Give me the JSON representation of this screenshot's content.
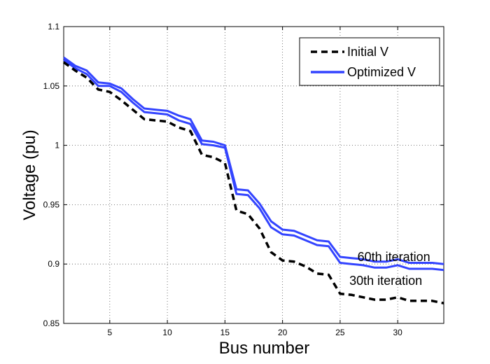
{
  "chart_data": {
    "type": "line",
    "title": "",
    "xlabel": "Bus number",
    "ylabel": "Voltage (pu)",
    "xlim": [
      1,
      34
    ],
    "ylim": [
      0.85,
      1.1
    ],
    "xticks": [
      5,
      10,
      15,
      20,
      25,
      30
    ],
    "xtick_labels": [
      "5",
      "10",
      "15",
      "20",
      "25",
      "30"
    ],
    "yticks": [
      0.85,
      0.9,
      0.95,
      1.0,
      1.05,
      1.1
    ],
    "ytick_labels": [
      "0.85",
      "0.9",
      "0.95",
      "1",
      "1.05",
      "1.1"
    ],
    "grid": true,
    "legend_position": "top-right",
    "x": [
      1,
      2,
      3,
      4,
      5,
      6,
      7,
      8,
      9,
      10,
      11,
      12,
      13,
      14,
      15,
      16,
      17,
      18,
      19,
      20,
      21,
      22,
      23,
      24,
      25,
      26,
      27,
      28,
      29,
      30,
      31,
      32,
      33,
      34
    ],
    "series": [
      {
        "name": "Initial V",
        "style": "dashed",
        "color": "#000000",
        "values": [
          1.07,
          1.063,
          1.057,
          1.047,
          1.045,
          1.038,
          1.03,
          1.022,
          1.021,
          1.02,
          1.015,
          1.012,
          0.992,
          0.99,
          0.985,
          0.945,
          0.942,
          0.93,
          0.91,
          0.903,
          0.902,
          0.898,
          0.892,
          0.891,
          0.875,
          0.874,
          0.872,
          0.87,
          0.87,
          0.872,
          0.869,
          0.869,
          0.869,
          0.867
        ]
      },
      {
        "name": "Optimized V",
        "style": "solid",
        "color": "#3344ff",
        "values": [
          1.072,
          1.065,
          1.06,
          1.05,
          1.05,
          1.045,
          1.036,
          1.028,
          1.027,
          1.026,
          1.021,
          1.018,
          1.001,
          1.0,
          0.998,
          0.959,
          0.958,
          0.947,
          0.931,
          0.925,
          0.924,
          0.92,
          0.916,
          0.915,
          0.901,
          0.9,
          0.899,
          0.897,
          0.897,
          0.899,
          0.896,
          0.896,
          0.896,
          0.895
        ]
      },
      {
        "name": "Optimized V",
        "style": "solid",
        "color": "#3344ff",
        "values": [
          1.074,
          1.067,
          1.063,
          1.053,
          1.052,
          1.048,
          1.039,
          1.031,
          1.03,
          1.029,
          1.025,
          1.022,
          1.004,
          1.003,
          1.0,
          0.963,
          0.962,
          0.951,
          0.936,
          0.929,
          0.928,
          0.924,
          0.92,
          0.919,
          0.906,
          0.905,
          0.904,
          0.902,
          0.902,
          0.904,
          0.901,
          0.901,
          0.901,
          0.9
        ]
      }
    ],
    "legend": [
      {
        "label": "Initial V",
        "style": "dashed",
        "color": "#000000"
      },
      {
        "label": "Optimized V",
        "style": "solid",
        "color": "#3344ff"
      }
    ],
    "annotations": [
      {
        "text": "60th iteration",
        "x": 26.5,
        "y": 0.906
      },
      {
        "text": "30th iteration",
        "x": 25.8,
        "y": 0.886
      }
    ]
  }
}
